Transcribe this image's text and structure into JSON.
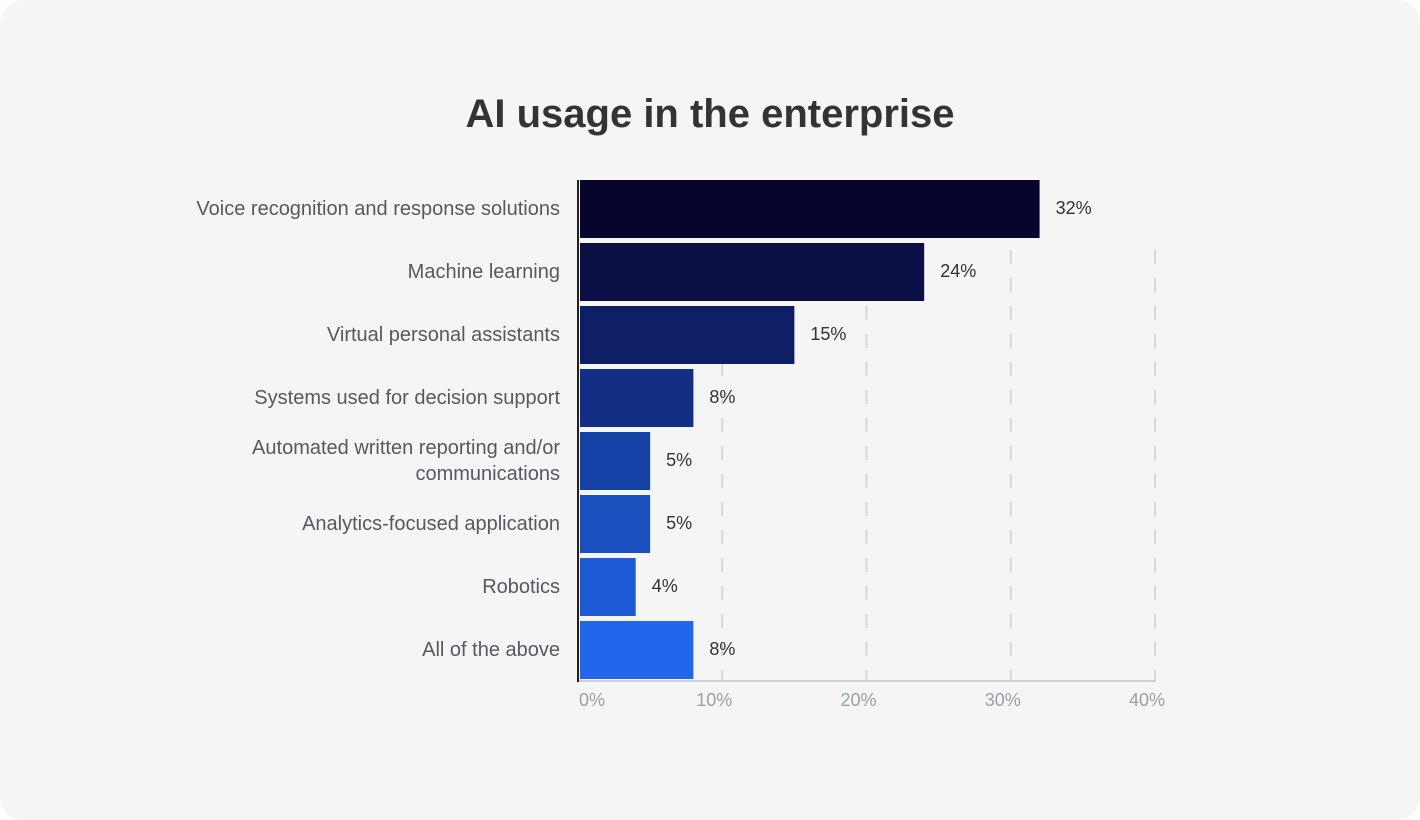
{
  "chart_data": {
    "type": "bar",
    "orientation": "horizontal",
    "title": "AI usage in the enterprise",
    "categories": [
      "Voice recognition and response solutions",
      "Machine learning",
      "Virtual personal assistants",
      "Systems used for decision support",
      "Automated written reporting and/or communications",
      "Analytics-focused application",
      "Robotics",
      "All of the above"
    ],
    "values": [
      32,
      24,
      15,
      8,
      5,
      5,
      4,
      8
    ],
    "value_labels": [
      "32%",
      "24%",
      "15%",
      "8%",
      "5%",
      "5%",
      "4%",
      "8%"
    ],
    "colors": [
      "#07052e",
      "#0b0f45",
      "#0f1f66",
      "#122f85",
      "#1542a6",
      "#1a4fbe",
      "#1d5bd6",
      "#2266ec"
    ],
    "xlim": [
      0,
      40
    ],
    "xticks": [
      {
        "value": 0,
        "label": "0%"
      },
      {
        "value": 10,
        "label": "10%"
      },
      {
        "value": 20,
        "label": "20%"
      },
      {
        "value": 30,
        "label": "30%"
      },
      {
        "value": 40,
        "label": "40%"
      }
    ],
    "grid": true
  }
}
